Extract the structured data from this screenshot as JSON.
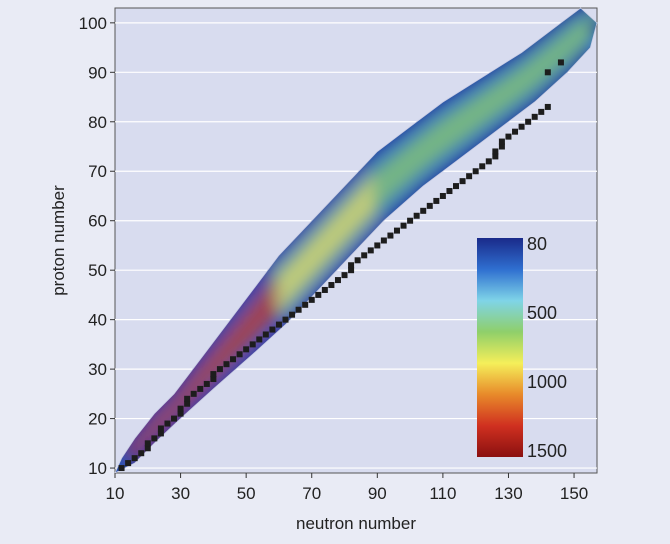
{
  "chart_data": {
    "type": "heatmap",
    "title": "",
    "xlabel": "neutron number",
    "ylabel": "proton number",
    "xlim": [
      10,
      157
    ],
    "ylim": [
      9,
      103
    ],
    "xticks": [
      10,
      30,
      50,
      70,
      90,
      110,
      130,
      150
    ],
    "yticks": [
      10,
      20,
      30,
      40,
      50,
      60,
      70,
      80,
      90,
      100
    ],
    "grid": true,
    "background_color": "#d8dcef",
    "colorbar": {
      "placement": "inside-bottom-right",
      "ticks": [
        "80",
        "500",
        "1000",
        "1500"
      ],
      "colors": [
        "#1a2a8a",
        "#2f6fd0",
        "#7fd4e8",
        "#8fcf6a",
        "#f5ef5a",
        "#e88a2a",
        "#d03020",
        "#8a1010"
      ]
    },
    "band_outline": [
      [
        10,
        9
      ],
      [
        12,
        12
      ],
      [
        16,
        16
      ],
      [
        22,
        21
      ],
      [
        28,
        25
      ],
      [
        36,
        32
      ],
      [
        44,
        39
      ],
      [
        52,
        46
      ],
      [
        60,
        53
      ],
      [
        70,
        60
      ],
      [
        80,
        67
      ],
      [
        90,
        74
      ],
      [
        100,
        79
      ],
      [
        110,
        84
      ],
      [
        122,
        89
      ],
      [
        134,
        94
      ],
      [
        146,
        100
      ],
      [
        152,
        103
      ],
      [
        157,
        100
      ],
      [
        155,
        95
      ],
      [
        148,
        90
      ],
      [
        138,
        84
      ],
      [
        126,
        78
      ],
      [
        114,
        72
      ],
      [
        104,
        67
      ],
      [
        92,
        60
      ],
      [
        82,
        53
      ],
      [
        72,
        46
      ],
      [
        62,
        39
      ],
      [
        52,
        33
      ],
      [
        40,
        26
      ],
      [
        30,
        20
      ],
      [
        22,
        15
      ],
      [
        16,
        11
      ]
    ],
    "stable_nuclei": [
      [
        12,
        10
      ],
      [
        14,
        11
      ],
      [
        16,
        12
      ],
      [
        18,
        13
      ],
      [
        20,
        14
      ],
      [
        20,
        15
      ],
      [
        22,
        16
      ],
      [
        24,
        17
      ],
      [
        24,
        18
      ],
      [
        26,
        19
      ],
      [
        28,
        20
      ],
      [
        30,
        21
      ],
      [
        30,
        22
      ],
      [
        32,
        23
      ],
      [
        32,
        24
      ],
      [
        34,
        25
      ],
      [
        36,
        26
      ],
      [
        38,
        27
      ],
      [
        40,
        28
      ],
      [
        40,
        29
      ],
      [
        42,
        30
      ],
      [
        44,
        31
      ],
      [
        46,
        32
      ],
      [
        48,
        33
      ],
      [
        50,
        34
      ],
      [
        52,
        35
      ],
      [
        54,
        36
      ],
      [
        56,
        37
      ],
      [
        58,
        38
      ],
      [
        60,
        39
      ],
      [
        62,
        40
      ],
      [
        64,
        41
      ],
      [
        66,
        42
      ],
      [
        68,
        43
      ],
      [
        70,
        44
      ],
      [
        72,
        45
      ],
      [
        74,
        46
      ],
      [
        76,
        47
      ],
      [
        78,
        48
      ],
      [
        80,
        49
      ],
      [
        82,
        50
      ],
      [
        82,
        51
      ],
      [
        84,
        52
      ],
      [
        86,
        53
      ],
      [
        88,
        54
      ],
      [
        90,
        55
      ],
      [
        92,
        56
      ],
      [
        94,
        57
      ],
      [
        96,
        58
      ],
      [
        98,
        59
      ],
      [
        100,
        60
      ],
      [
        102,
        61
      ],
      [
        104,
        62
      ],
      [
        106,
        63
      ],
      [
        108,
        64
      ],
      [
        110,
        65
      ],
      [
        112,
        66
      ],
      [
        114,
        67
      ],
      [
        116,
        68
      ],
      [
        118,
        69
      ],
      [
        120,
        70
      ],
      [
        122,
        71
      ],
      [
        124,
        72
      ],
      [
        126,
        73
      ],
      [
        126,
        74
      ],
      [
        128,
        75
      ],
      [
        128,
        76
      ],
      [
        130,
        77
      ],
      [
        132,
        78
      ],
      [
        134,
        79
      ],
      [
        136,
        80
      ],
      [
        138,
        81
      ],
      [
        140,
        82
      ],
      [
        142,
        83
      ],
      [
        142,
        90
      ],
      [
        146,
        92
      ]
    ]
  }
}
